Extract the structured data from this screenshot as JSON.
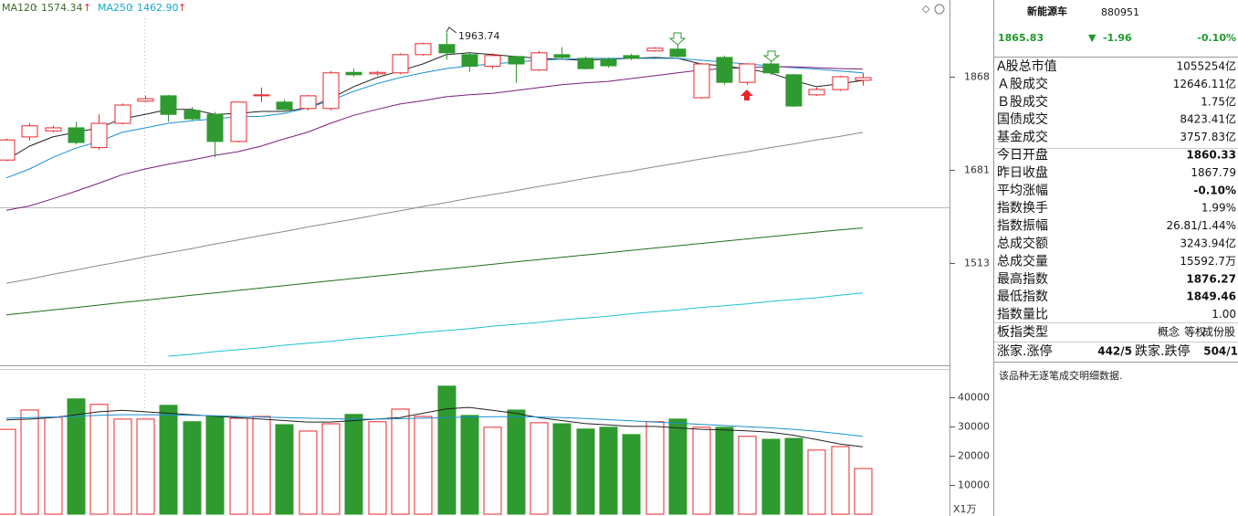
{
  "chart_data": [
    {
      "type": "candlestick",
      "log_scale": true,
      "ylim": [
        1348,
        2037
      ],
      "yticks": [
        1868,
        1681,
        1513
      ],
      "up_color": "#e8262a",
      "down_color": "#2f9a2f",
      "open": [
        1700,
        1745,
        1757,
        1763,
        1724,
        1772,
        1817,
        1828,
        1798,
        1790,
        1736,
        1828,
        1815,
        1802,
        1802,
        1877,
        1874,
        1876,
        1915,
        1937,
        1915,
        1890,
        1911,
        1882,
        1915,
        1907,
        1905,
        1913,
        1923,
        1927,
        1824,
        1909,
        1856,
        1895,
        1872,
        1830,
        1841,
        1860.33
      ],
      "high": [
        1742,
        1772,
        1767,
        1775,
        1790,
        1812,
        1828,
        1830,
        1805,
        1795,
        1815,
        1845,
        1820,
        1830,
        1880,
        1885,
        1880,
        1918,
        1941,
        1963.74,
        1918,
        1918,
        1913,
        1923,
        1931,
        1911,
        1909,
        1917,
        1931,
        1937,
        1897,
        1913,
        1897,
        1901,
        1874,
        1845,
        1870,
        1876.27
      ],
      "low": [
        1698,
        1738,
        1754,
        1730,
        1720,
        1770,
        1815,
        1775,
        1777,
        1705,
        1734,
        1815,
        1798,
        1798,
        1798,
        1868,
        1870,
        1873,
        1913,
        1904,
        1878,
        1885,
        1855,
        1880,
        1905,
        1883,
        1887,
        1903,
        1921,
        1909,
        1822,
        1851,
        1851,
        1872,
        1805,
        1828,
        1838,
        1849.46
      ],
      "close": [
        1739,
        1767,
        1763,
        1734,
        1772,
        1809,
        1822,
        1790,
        1781,
        1736,
        1815,
        1830,
        1800,
        1828,
        1876,
        1872,
        1877,
        1915,
        1939,
        1919,
        1890,
        1913,
        1895,
        1919,
        1909,
        1885,
        1891,
        1907,
        1929,
        1911,
        1895,
        1856,
        1895,
        1876,
        1807,
        1841,
        1867.79,
        1865.83
      ],
      "series": [
        {
          "color": "#222222",
          "values": [
            1700,
            1727,
            1745,
            1754,
            1763,
            1781,
            1790,
            1800,
            1800,
            1790,
            1792,
            1796,
            1796,
            1803,
            1822,
            1847,
            1866,
            1880,
            1895,
            1915,
            1919,
            1915,
            1911,
            1907,
            1905,
            1903,
            1905,
            1907,
            1909,
            1907,
            1895,
            1891,
            1884,
            1876,
            1860,
            1847,
            1853,
            1860
          ]
        },
        {
          "color": "#1a8fd0",
          "values": [
            1666,
            1683,
            1705,
            1723,
            1736,
            1754,
            1763,
            1772,
            1777,
            1781,
            1785,
            1786,
            1792,
            1803,
            1818,
            1837,
            1853,
            1866,
            1876,
            1885,
            1891,
            1895,
            1899,
            1903,
            1905,
            1907,
            1907,
            1907,
            1907,
            1907,
            1903,
            1899,
            1895,
            1891,
            1887,
            1884,
            1880,
            1876
          ]
        },
        {
          "color": "#7b1f7b",
          "values": [
            1606,
            1614,
            1627,
            1641,
            1656,
            1672,
            1683,
            1692,
            1700,
            1709,
            1716,
            1727,
            1741,
            1754,
            1772,
            1788,
            1800,
            1811,
            1818,
            1826,
            1830,
            1833,
            1839,
            1845,
            1851,
            1855,
            1858,
            1864,
            1870,
            1876,
            1882,
            1885,
            1887,
            1889,
            1889,
            1887,
            1885,
            1884
          ]
        },
        {
          "color": "#8a8a8a",
          "values": [
            1479,
            1486,
            1494,
            1501,
            1509,
            1516,
            1524,
            1531,
            1538,
            1546,
            1553,
            1561,
            1568,
            1576,
            1583,
            1590,
            1598,
            1605,
            1613,
            1620,
            1628,
            1635,
            1642,
            1650,
            1657,
            1665,
            1672,
            1679,
            1687,
            1694,
            1702,
            1709,
            1716,
            1724,
            1731,
            1739,
            1746,
            1754
          ]
        },
        {
          "name": "MA120",
          "color": "#1f6f1f",
          "values": [
            1427,
            1431,
            1435,
            1439,
            1443,
            1447,
            1451,
            1455,
            1459,
            1463,
            1467,
            1471,
            1475,
            1479,
            1483,
            1487,
            1491,
            1495,
            1499,
            1503,
            1507,
            1511,
            1515,
            1519,
            1523,
            1527,
            1531,
            1535,
            1539,
            1543,
            1547,
            1551,
            1555,
            1559,
            1563,
            1567,
            1571,
            1574.34
          ],
          "value_labels": [
            null,
            null,
            null,
            null,
            null,
            null,
            null,
            null,
            null,
            null,
            null,
            null,
            null,
            null,
            null,
            null,
            null,
            null,
            null,
            null,
            null,
            null,
            null,
            null,
            null,
            null,
            null,
            null,
            null,
            null,
            null,
            null,
            null,
            null,
            null,
            null,
            null,
            "1574.34"
          ]
        },
        {
          "name": "MA250",
          "color": "#1ec0d0",
          "values": [
            null,
            null,
            null,
            null,
            null,
            null,
            null,
            1362,
            1365,
            1369,
            1372,
            1375,
            1379,
            1382,
            1385,
            1389,
            1392,
            1395,
            1399,
            1402,
            1405,
            1409,
            1412,
            1415,
            1419,
            1422,
            1425,
            1429,
            1432,
            1435,
            1439,
            1442,
            1445,
            1449,
            1452,
            1455,
            1459,
            1462.9
          ],
          "value_labels": [
            null,
            null,
            null,
            null,
            null,
            null,
            null,
            null,
            null,
            null,
            null,
            null,
            null,
            null,
            null,
            null,
            null,
            null,
            null,
            null,
            null,
            null,
            null,
            null,
            null,
            null,
            null,
            null,
            null,
            null,
            null,
            null,
            null,
            null,
            null,
            null,
            null,
            "1462.90"
          ]
        }
      ]
    },
    {
      "type": "bar",
      "ylim": [
        0,
        49000
      ],
      "yticks": [
        40000,
        30000,
        20000,
        10000
      ],
      "y_label": "X1万",
      "values": [
        29000,
        35600,
        33100,
        39400,
        37500,
        32500,
        32500,
        37200,
        31600,
        33400,
        32800,
        33400,
        30600,
        28400,
        30900,
        34100,
        31600,
        35900,
        33400,
        43750,
        33750,
        29700,
        35600,
        31250,
        30900,
        29100,
        29700,
        27200,
        31600,
        32500,
        29700,
        29700,
        26600,
        25600,
        25900,
        21900,
        23100,
        15600
      ],
      "series": [
        {
          "color": "#222222",
          "values": [
            32200,
            32500,
            33000,
            34000,
            35000,
            35500,
            35000,
            34500,
            34000,
            33500,
            33000,
            32500,
            32000,
            31500,
            31500,
            32000,
            32500,
            33000,
            34500,
            36000,
            36500,
            35500,
            34500,
            33000,
            32000,
            31000,
            30500,
            30000,
            30000,
            29500,
            29000,
            28800,
            28500,
            28000,
            27000,
            25500,
            24000,
            23000
          ]
        },
        {
          "color": "#1a8fd0",
          "values": [
            32800,
            33000,
            33200,
            33500,
            33800,
            34000,
            34000,
            33900,
            33800,
            33600,
            33400,
            33200,
            33000,
            32800,
            32600,
            32500,
            32500,
            32600,
            32800,
            33000,
            33200,
            33300,
            33300,
            33200,
            33000,
            32700,
            32300,
            31900,
            31500,
            31100,
            30700,
            30300,
            29900,
            29500,
            29000,
            28300,
            27500,
            26600
          ]
        }
      ]
    }
  ],
  "panel": {
    "name": "新能源车",
    "code": "880951",
    "price": "1865.83",
    "change": "-1.96",
    "change_pct": "-0.10%",
    "quote_color": "#1f9a2a",
    "stats": [
      {
        "label": "A股总市值",
        "value": "1055254亿"
      },
      {
        "label": "Ａ股成交",
        "value": "12646.11亿"
      },
      {
        "label": "Ｂ股成交",
        "value": "1.75亿"
      },
      {
        "label": "国债成交",
        "value": "8423.41亿"
      },
      {
        "label": "基金成交",
        "value": "3757.83亿"
      },
      {
        "label": "今日开盘",
        "value": "1860.33",
        "color": "#1f9a2a"
      },
      {
        "label": "昨日收盘",
        "value": "1867.79"
      },
      {
        "label": "平均涨幅",
        "value": "-0.10%",
        "color": "#1f9a2a"
      },
      {
        "label": "指数换手",
        "value": "1.99%"
      },
      {
        "label": "指数振幅",
        "value": "26.81/1.44%"
      },
      {
        "label": "总成交额",
        "value": "3243.94亿"
      },
      {
        "label": "总成交量",
        "value": "15592.7万"
      },
      {
        "label": "最高指数",
        "value": "1876.27",
        "color": "#e8262a"
      },
      {
        "label": "最低指数",
        "value": "1849.46",
        "color": "#1f9a2a"
      },
      {
        "label": "指数量比",
        "value": "1.00"
      }
    ],
    "type_row": {
      "label": "板指类型",
      "tags": [
        "概念",
        "等权",
        "成份股"
      ]
    },
    "breadth": {
      "up_label": "涨家.涨停",
      "up_value": "442/5",
      "up_color": "#e8262a",
      "down_label": "跌家.跌停",
      "down_value": "504/1",
      "down_color": "#1f9a2a"
    },
    "note": "该品种无逐笔成交明细数据."
  }
}
